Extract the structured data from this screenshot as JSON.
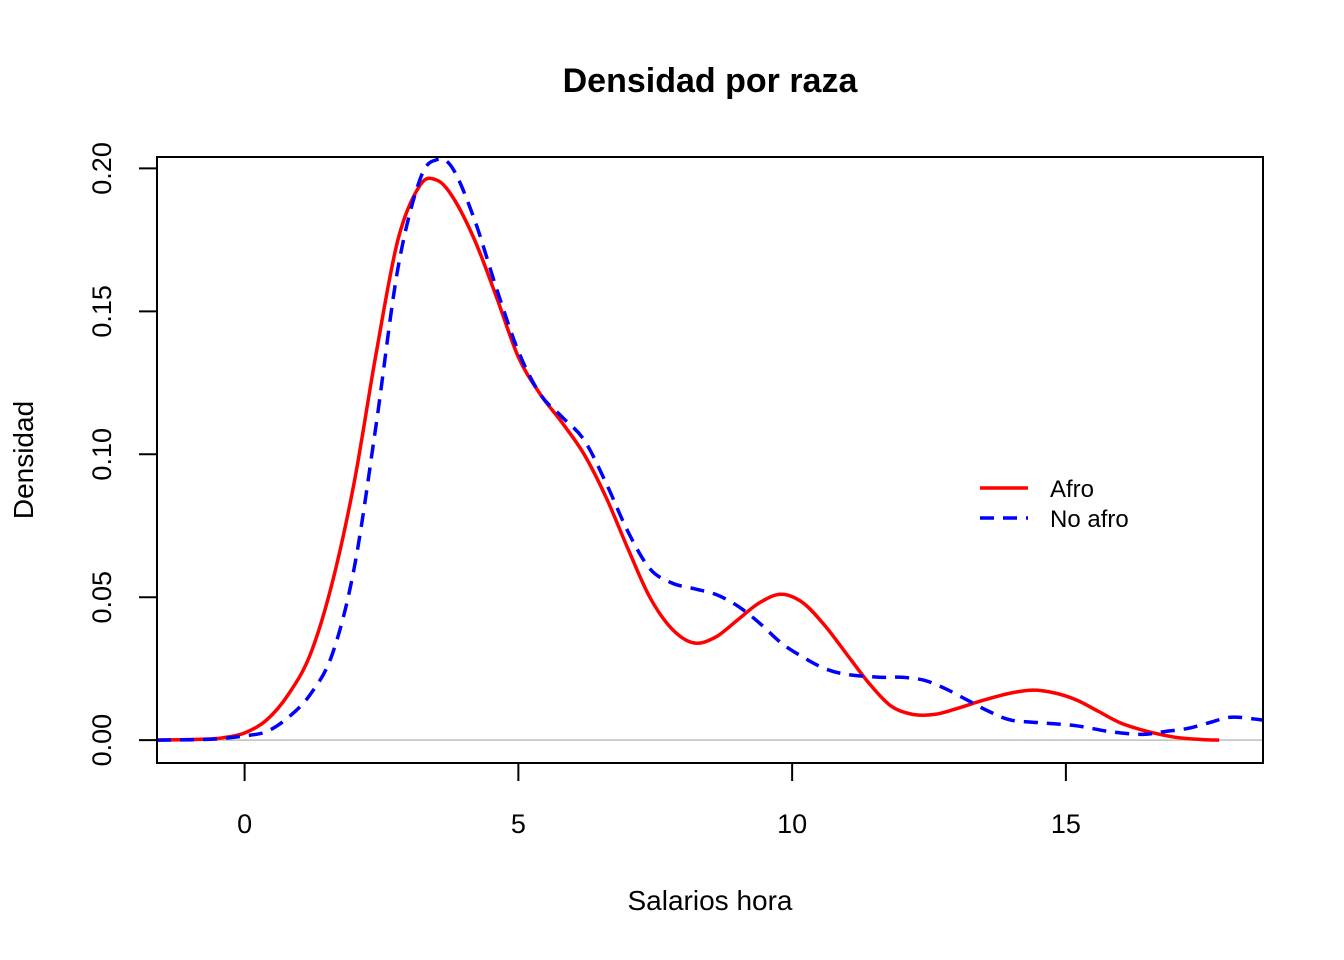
{
  "chart_data": {
    "type": "line",
    "title": "Densidad por raza",
    "xlabel": "Salarios hora",
    "ylabel": "Densidad",
    "xlim": [
      -1.6,
      18.6
    ],
    "ylim": [
      -0.008,
      0.204
    ],
    "x_ticks": [
      0,
      5,
      10,
      15
    ],
    "y_ticks": [
      0.0,
      0.05,
      0.1,
      0.15,
      0.2
    ],
    "x_tick_labels": [
      "0",
      "5",
      "10",
      "15"
    ],
    "y_tick_labels": [
      "0.00",
      "0.05",
      "0.10",
      "0.15",
      "0.20"
    ],
    "baseline_y": 0,
    "grid": false,
    "legend_position": "right",
    "series": [
      {
        "name": "Afro",
        "color": "#ff0000",
        "style": "solid",
        "points": [
          [
            -1.6,
            0.0
          ],
          [
            -0.8,
            0.0003
          ],
          [
            -0.4,
            0.0008
          ],
          [
            0.0,
            0.0025
          ],
          [
            0.4,
            0.007
          ],
          [
            0.8,
            0.016
          ],
          [
            1.2,
            0.03
          ],
          [
            1.6,
            0.055
          ],
          [
            2.0,
            0.09
          ],
          [
            2.4,
            0.135
          ],
          [
            2.8,
            0.175
          ],
          [
            3.2,
            0.194
          ],
          [
            3.5,
            0.196
          ],
          [
            3.8,
            0.19
          ],
          [
            4.2,
            0.175
          ],
          [
            4.6,
            0.155
          ],
          [
            5.0,
            0.134
          ],
          [
            5.4,
            0.121
          ],
          [
            5.8,
            0.111
          ],
          [
            6.2,
            0.1
          ],
          [
            6.6,
            0.085
          ],
          [
            7.0,
            0.067
          ],
          [
            7.4,
            0.05
          ],
          [
            7.8,
            0.039
          ],
          [
            8.2,
            0.034
          ],
          [
            8.6,
            0.036
          ],
          [
            9.0,
            0.042
          ],
          [
            9.4,
            0.048
          ],
          [
            9.8,
            0.051
          ],
          [
            10.2,
            0.048
          ],
          [
            10.6,
            0.04
          ],
          [
            11.0,
            0.03
          ],
          [
            11.4,
            0.02
          ],
          [
            11.8,
            0.012
          ],
          [
            12.2,
            0.009
          ],
          [
            12.6,
            0.009
          ],
          [
            13.0,
            0.011
          ],
          [
            13.5,
            0.014
          ],
          [
            14.0,
            0.0165
          ],
          [
            14.4,
            0.0175
          ],
          [
            14.8,
            0.0165
          ],
          [
            15.2,
            0.014
          ],
          [
            15.6,
            0.01
          ],
          [
            16.0,
            0.006
          ],
          [
            16.5,
            0.003
          ],
          [
            17.0,
            0.001
          ],
          [
            17.5,
            0.0002
          ],
          [
            17.8,
            0.0
          ]
        ]
      },
      {
        "name": "No afro",
        "color": "#0000ff",
        "style": "dashed",
        "points": [
          [
            -1.6,
            0.0
          ],
          [
            -0.8,
            0.0002
          ],
          [
            -0.4,
            0.0006
          ],
          [
            0.0,
            0.0015
          ],
          [
            0.4,
            0.003
          ],
          [
            0.8,
            0.008
          ],
          [
            1.2,
            0.016
          ],
          [
            1.6,
            0.03
          ],
          [
            2.0,
            0.06
          ],
          [
            2.4,
            0.11
          ],
          [
            2.8,
            0.165
          ],
          [
            3.2,
            0.196
          ],
          [
            3.5,
            0.203
          ],
          [
            3.8,
            0.2
          ],
          [
            4.2,
            0.182
          ],
          [
            4.6,
            0.158
          ],
          [
            5.0,
            0.136
          ],
          [
            5.4,
            0.121
          ],
          [
            5.8,
            0.113
          ],
          [
            6.2,
            0.105
          ],
          [
            6.6,
            0.09
          ],
          [
            7.0,
            0.073
          ],
          [
            7.4,
            0.06
          ],
          [
            7.8,
            0.055
          ],
          [
            8.2,
            0.053
          ],
          [
            8.6,
            0.051
          ],
          [
            9.0,
            0.047
          ],
          [
            9.4,
            0.041
          ],
          [
            9.8,
            0.034
          ],
          [
            10.2,
            0.029
          ],
          [
            10.6,
            0.025
          ],
          [
            11.0,
            0.023
          ],
          [
            11.6,
            0.022
          ],
          [
            12.0,
            0.022
          ],
          [
            12.4,
            0.021
          ],
          [
            12.8,
            0.018
          ],
          [
            13.2,
            0.014
          ],
          [
            13.6,
            0.01
          ],
          [
            14.0,
            0.007
          ],
          [
            14.6,
            0.006
          ],
          [
            15.2,
            0.005
          ],
          [
            15.8,
            0.003
          ],
          [
            16.4,
            0.002
          ],
          [
            16.8,
            0.003
          ],
          [
            17.2,
            0.004
          ],
          [
            17.6,
            0.006
          ],
          [
            18.0,
            0.008
          ],
          [
            18.4,
            0.0075
          ],
          [
            18.6,
            0.007
          ]
        ]
      }
    ]
  }
}
